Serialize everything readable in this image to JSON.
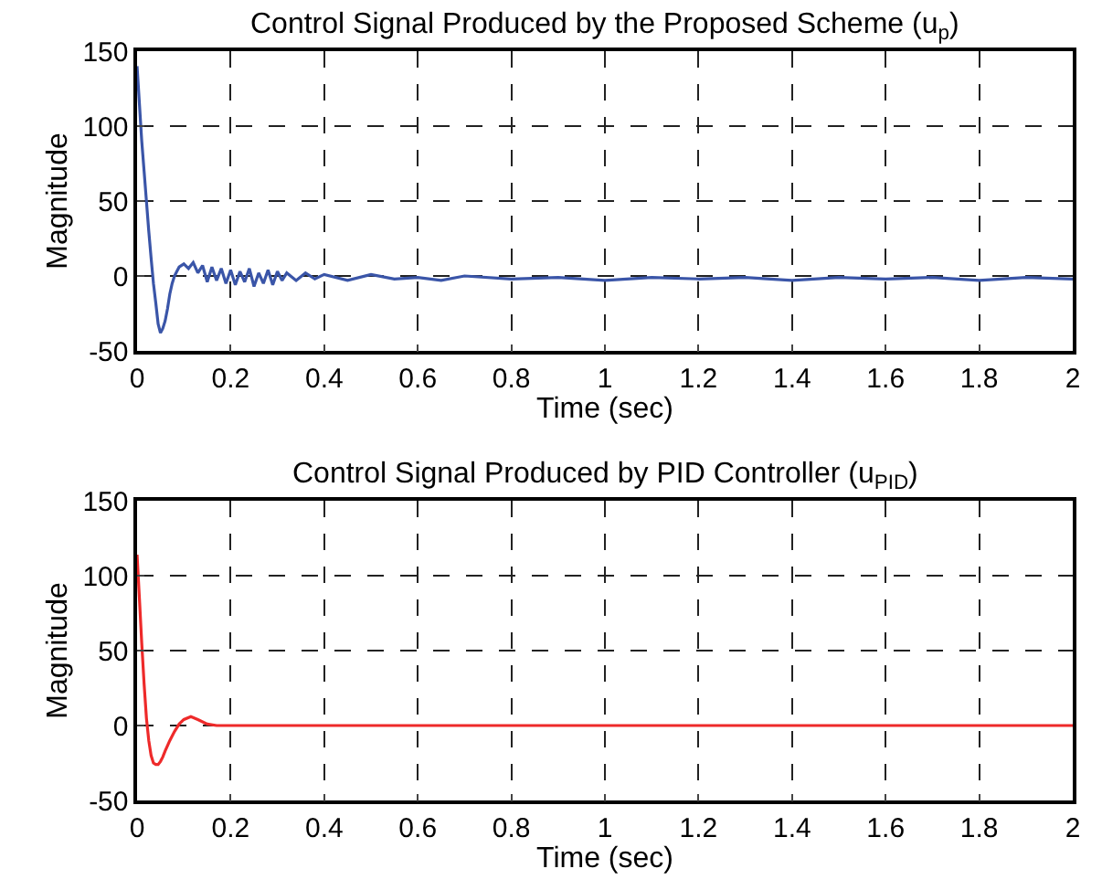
{
  "chart_data": [
    {
      "type": "line",
      "title": "Control Signal Produced by the Proposed Scheme (u$_{p}$)",
      "xlabel": "Time (sec)",
      "ylabel": "Magnitude",
      "xlim": [
        0,
        2
      ],
      "ylim": [
        -50,
        150
      ],
      "xticks": [
        0,
        0.2,
        0.4,
        0.6,
        0.8,
        1,
        1.2,
        1.4,
        1.6,
        1.8,
        2
      ],
      "yticks": [
        -50,
        0,
        50,
        100,
        150
      ],
      "grid": true,
      "line_style": "solid",
      "marker": "none",
      "series": [
        {
          "color": "#3a55a8",
          "x": [
            0,
            0.005,
            0.01,
            0.015,
            0.02,
            0.025,
            0.03,
            0.035,
            0.04,
            0.045,
            0.05,
            0.055,
            0.06,
            0.065,
            0.07,
            0.075,
            0.08,
            0.085,
            0.09,
            0.1,
            0.11,
            0.12,
            0.13,
            0.14,
            0.15,
            0.16,
            0.17,
            0.18,
            0.19,
            0.2,
            0.21,
            0.22,
            0.23,
            0.24,
            0.25,
            0.26,
            0.27,
            0.28,
            0.29,
            0.3,
            0.31,
            0.32,
            0.34,
            0.36,
            0.38,
            0.4,
            0.45,
            0.5,
            0.55,
            0.6,
            0.65,
            0.7,
            0.8,
            0.9,
            1.0,
            1.1,
            1.2,
            1.3,
            1.4,
            1.5,
            1.6,
            1.7,
            1.8,
            1.9,
            2.0
          ],
          "values": [
            140,
            115,
            90,
            70,
            50,
            30,
            12,
            -5,
            -18,
            -32,
            -38,
            -35,
            -30,
            -22,
            -12,
            -5,
            0,
            3,
            6,
            8,
            5,
            9,
            2,
            7,
            -4,
            6,
            -3,
            5,
            -5,
            4,
            -6,
            3,
            -4,
            5,
            -7,
            2,
            -5,
            4,
            -6,
            3,
            -3,
            2,
            -3,
            2,
            -2,
            1,
            -3,
            1,
            -2,
            -1,
            -3,
            0,
            -2,
            -1,
            -3,
            -1,
            -2,
            -1,
            -3,
            -1,
            -2,
            -1,
            -3,
            -1,
            -2
          ]
        }
      ]
    },
    {
      "type": "line",
      "title": "Control Signal Produced by PID Controller (u$_{PID}$)",
      "xlabel": "Time (sec)",
      "ylabel": "Magnitude",
      "xlim": [
        0,
        2
      ],
      "ylim": [
        -50,
        150
      ],
      "xticks": [
        0,
        0.2,
        0.4,
        0.6,
        0.8,
        1,
        1.2,
        1.4,
        1.6,
        1.8,
        2
      ],
      "yticks": [
        -50,
        0,
        50,
        100,
        150
      ],
      "grid": true,
      "line_style": "solid",
      "marker": "none",
      "series": [
        {
          "color": "#ee2a2a",
          "x": [
            0,
            0.005,
            0.01,
            0.015,
            0.02,
            0.025,
            0.03,
            0.035,
            0.04,
            0.045,
            0.05,
            0.055,
            0.06,
            0.07,
            0.08,
            0.09,
            0.1,
            0.115,
            0.13,
            0.15,
            0.17,
            0.2,
            0.3,
            0.5,
            0.8,
            1.0,
            1.2,
            1.5,
            1.8,
            2.0
          ],
          "values": [
            114,
            85,
            55,
            28,
            5,
            -10,
            -20,
            -25,
            -26,
            -26,
            -24,
            -21,
            -17,
            -10,
            -4,
            1,
            4,
            6,
            4,
            1,
            0,
            0,
            0,
            0,
            0,
            0,
            0,
            0,
            0,
            0
          ]
        }
      ]
    }
  ]
}
